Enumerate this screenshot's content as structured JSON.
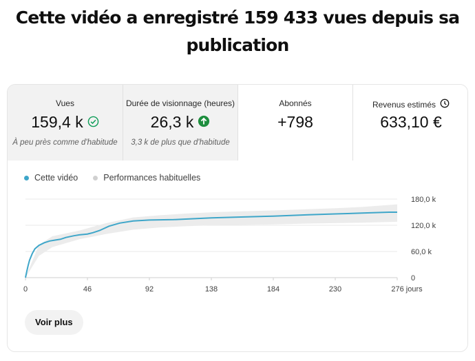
{
  "headline": "Cette vidéo a enregistré 159 433 vues depuis sa publication",
  "metrics": [
    {
      "title": "Vues",
      "value": "159,4 k",
      "icon": "check-circle-icon",
      "subtitle": "À peu près comme d'habitude",
      "active": false
    },
    {
      "title": "Durée de visionnage (heures)",
      "value": "26,3 k",
      "icon": "arrow-up-circle-icon",
      "subtitle": "3,3 k de plus que d'habitude",
      "active": false
    },
    {
      "title": "Abonnés",
      "value": "+798",
      "icon": "",
      "subtitle": "",
      "active": true
    },
    {
      "title": "Revenus estimés",
      "value": "633,10 €",
      "icon": "clock-icon",
      "subtitle": "",
      "active": true
    }
  ],
  "colors": {
    "series": "#3ea6c9",
    "band": "#ececec",
    "check": "#0f9d58",
    "up": "#1e8e3e"
  },
  "legend": {
    "this_video": "Cette vidéo",
    "typical": "Performances habituelles"
  },
  "button": {
    "see_more": "Voir plus"
  },
  "chart_data": {
    "type": "line",
    "x_tick_labels": [
      "0",
      "46",
      "92",
      "138",
      "184",
      "230",
      "276 jours"
    ],
    "y_tick_labels": [
      "0",
      "60,0 k",
      "120,0 k",
      "180,0 k"
    ],
    "xlim": [
      0,
      276
    ],
    "ylim": [
      0,
      180
    ],
    "grid": true,
    "legend_position": "top-left",
    "series": [
      {
        "name": "Cette vidéo",
        "x": [
          0,
          1,
          2,
          3,
          5,
          7,
          10,
          14,
          18,
          22,
          26,
          30,
          36,
          40,
          46,
          50,
          55,
          62,
          70,
          80,
          92,
          110,
          138,
          160,
          184,
          210,
          230,
          250,
          270,
          276
        ],
        "y": [
          0,
          15,
          28,
          40,
          55,
          66,
          74,
          80,
          84,
          86,
          88,
          92,
          96,
          98,
          100,
          103,
          108,
          118,
          125,
          130,
          132,
          133,
          137,
          139,
          141,
          144,
          146,
          148,
          150,
          150
        ]
      },
      {
        "name": "Performances habituelles",
        "x": [
          0,
          10,
          20,
          40,
          60,
          80,
          100,
          120,
          140,
          160,
          184,
          210,
          230,
          250,
          276
        ],
        "y_low": [
          0,
          50,
          70,
          88,
          100,
          110,
          115,
          118,
          120,
          121,
          122,
          124,
          125,
          126,
          128
        ],
        "y_high": [
          0,
          75,
          95,
          108,
          125,
          138,
          143,
          147,
          150,
          152,
          154,
          157,
          159,
          162,
          168
        ]
      }
    ]
  }
}
